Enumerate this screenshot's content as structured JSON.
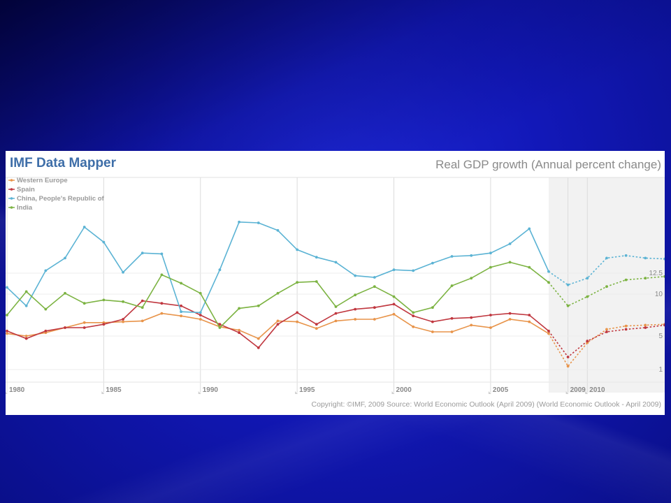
{
  "header": {
    "brand": "IMF Data Mapper",
    "chart_title": "Real GDP growth (Annual percent change)"
  },
  "footer": {
    "copyright": "Copyright: ©IMF, 2009 Source: World Economic Outlook (April 2009) (World Economic Outlook - April 2009)"
  },
  "colors": {
    "page_background": "#1218b8",
    "brand_text": "#3e6ea8",
    "forecast_band": "#f2f2f2"
  },
  "chart_data": {
    "type": "line",
    "title": "Real GDP growth (Annual percent change)",
    "grid": true,
    "legend_position": "top-left",
    "forecast_start_year": 2008,
    "x": [
      1980,
      1981,
      1982,
      1983,
      1984,
      1985,
      1986,
      1987,
      1988,
      1989,
      1990,
      1991,
      1992,
      1993,
      1994,
      1995,
      1996,
      1997,
      1998,
      1999,
      2000,
      2001,
      2002,
      2003,
      2004,
      2005,
      2006,
      2007,
      2008,
      2009,
      2010,
      2011,
      2012,
      2013,
      2014
    ],
    "x_tick_labels": [
      "1980",
      "1985",
      "1990",
      "1995",
      "2000",
      "2005",
      "2009",
      "2010"
    ],
    "y_tick_labels": [
      "1",
      "5",
      "10",
      "12.5"
    ],
    "series": [
      {
        "name": "Western Europe",
        "color": "#e8944a",
        "values": [
          5.3,
          5.0,
          5.4,
          6.0,
          6.6,
          6.6,
          6.7,
          6.8,
          7.7,
          7.4,
          7.0,
          6.1,
          5.7,
          4.7,
          6.8,
          6.7,
          5.9,
          6.8,
          7.0,
          7.0,
          7.6,
          6.1,
          5.5,
          5.5,
          6.3,
          6.0,
          7.0,
          6.7,
          5.3,
          1.4,
          4.2,
          5.8,
          6.2,
          6.3,
          6.4
        ]
      },
      {
        "name": "Spain",
        "color": "#c0373f",
        "values": [
          5.6,
          4.7,
          5.6,
          6.0,
          6.0,
          6.4,
          7.0,
          9.2,
          8.9,
          8.6,
          7.5,
          6.4,
          5.4,
          3.6,
          6.4,
          7.8,
          6.4,
          7.7,
          8.2,
          8.4,
          8.8,
          7.4,
          6.7,
          7.1,
          7.2,
          7.5,
          7.7,
          7.5,
          5.6,
          2.5,
          4.4,
          5.5,
          5.8,
          6.0,
          6.3
        ]
      },
      {
        "name": "China, People's Republic of",
        "color": "#5bb3d4",
        "values": [
          10.8,
          8.6,
          12.8,
          14.3,
          18.0,
          16.2,
          12.6,
          14.9,
          14.8,
          7.9,
          7.8,
          12.9,
          18.6,
          18.5,
          17.6,
          15.3,
          14.4,
          13.8,
          12.2,
          12.0,
          12.9,
          12.8,
          13.7,
          14.5,
          14.6,
          14.9,
          16.0,
          17.8,
          12.7,
          11.1,
          11.9,
          14.3,
          14.6,
          14.3,
          14.2
        ]
      },
      {
        "name": "India",
        "color": "#7cb342",
        "values": [
          7.5,
          10.3,
          8.2,
          10.1,
          8.9,
          9.3,
          9.1,
          8.4,
          12.3,
          11.3,
          10.1,
          6.0,
          8.3,
          8.6,
          10.1,
          11.4,
          11.5,
          8.5,
          9.9,
          10.9,
          9.7,
          7.8,
          8.4,
          11.0,
          11.9,
          13.2,
          13.8,
          13.2,
          11.4,
          8.6,
          9.7,
          10.9,
          11.7,
          11.9,
          12.1
        ]
      }
    ]
  }
}
